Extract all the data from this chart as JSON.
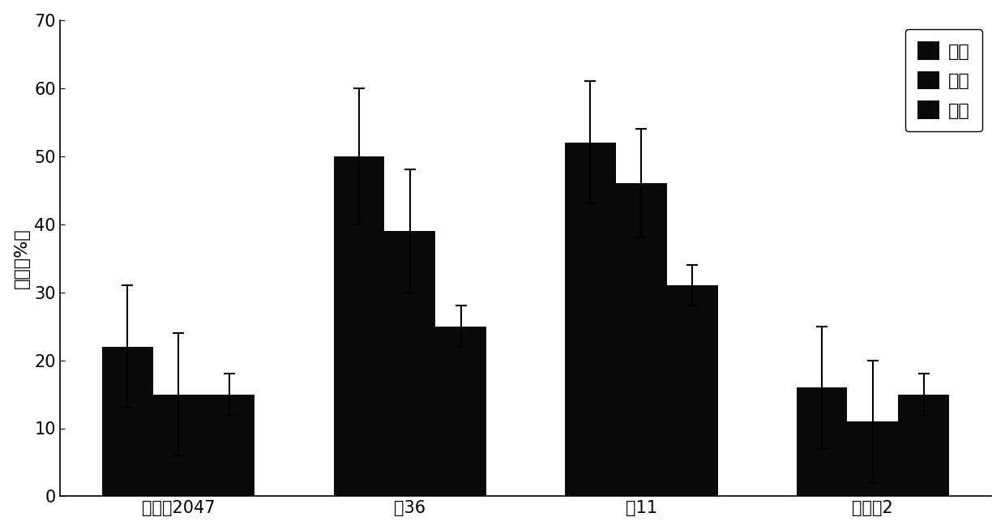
{
  "categories": [
    "渐渗系2047",
    "中36",
    "冀11",
    "中植棉2"
  ],
  "series": [
    {
      "label": "温室",
      "values": [
        22,
        50,
        52,
        16
      ],
      "errors": [
        9,
        10,
        9,
        9
      ],
      "color": "#0a0a0a"
    },
    {
      "label": "安阳",
      "values": [
        15,
        39,
        46,
        11
      ],
      "errors": [
        9,
        9,
        8,
        9
      ],
      "color": "#0a0a0a"
    },
    {
      "label": "新疆",
      "values": [
        15,
        25,
        31,
        15
      ],
      "errors": [
        3,
        3,
        3,
        3
      ],
      "color": "#0a0a0a"
    }
  ],
  "ylabel": "病指（%）",
  "ylim": [
    0,
    70
  ],
  "yticks": [
    0,
    10,
    20,
    30,
    40,
    50,
    60,
    70
  ],
  "bar_width": 0.22,
  "legend_loc": "upper right",
  "background_color": "#ffffff",
  "tick_fontsize": 15,
  "label_fontsize": 16,
  "legend_fontsize": 16
}
